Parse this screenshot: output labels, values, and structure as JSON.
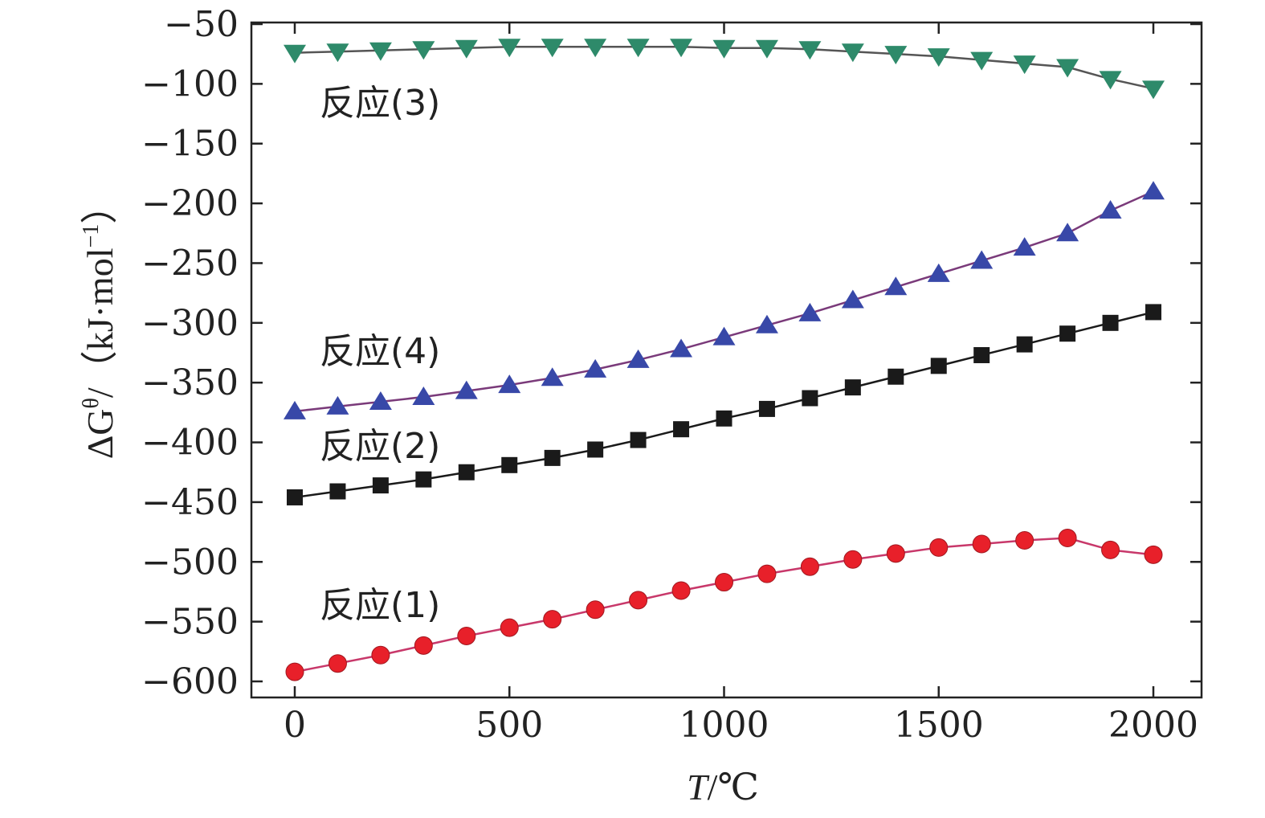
{
  "chart_data": {
    "type": "line",
    "title": "",
    "xlabel_var": "T",
    "xlabel_unit": "/℃",
    "ylabel_prefix": "ΔG",
    "ylabel_sup1": "θ",
    "ylabel_mid": "/（kJ·mol",
    "ylabel_sup2": "−1",
    "ylabel_suffix": "）",
    "xlim": [
      -100,
      2100
    ],
    "ylim": [
      -610,
      -50
    ],
    "xticks": [
      0,
      500,
      1000,
      1500,
      2000
    ],
    "yticks": [
      -50,
      -100,
      -150,
      -200,
      -250,
      -300,
      -350,
      -400,
      -450,
      -500,
      -550,
      -600
    ],
    "xtick_labels": [
      "0",
      "500",
      "1000",
      "1500",
      "2000"
    ],
    "ytick_labels": [
      "−50",
      "−100",
      "−150",
      "−200",
      "−250",
      "−300",
      "−350",
      "−400",
      "−450",
      "−500",
      "−550",
      "−600"
    ],
    "x": [
      0,
      100,
      200,
      300,
      400,
      500,
      600,
      700,
      800,
      900,
      1000,
      1100,
      1200,
      1300,
      1400,
      1500,
      1600,
      1700,
      1800,
      1900,
      2000
    ],
    "series": [
      {
        "name": "反应(1)",
        "marker": "circle",
        "color": "#e8202a",
        "line_color": "#c8386a",
        "values": [
          -592,
          -585,
          -578,
          -570,
          -562,
          -555,
          -548,
          -540,
          -532,
          -524,
          -517,
          -510,
          -504,
          -498,
          -493,
          -488,
          -485,
          -482,
          -480,
          -490,
          -494
        ]
      },
      {
        "name": "反应(2)",
        "marker": "square",
        "color": "#1a1a1a",
        "line_color": "#1a1a1a",
        "values": [
          -446,
          -441,
          -436,
          -431,
          -425,
          -419,
          -413,
          -406,
          -398,
          -389,
          -380,
          -372,
          -363,
          -354,
          -345,
          -336,
          -327,
          -318,
          -309,
          -300,
          -291
        ]
      },
      {
        "name": "反应(3)",
        "marker": "triangle-down",
        "color": "#2e8a6a",
        "line_color": "#555555",
        "values": [
          -74,
          -73,
          -72,
          -71,
          -70,
          -69,
          -69,
          -69,
          -69,
          -69,
          -70,
          -70,
          -71,
          -73,
          -75,
          -77,
          -80,
          -83,
          -86,
          -96,
          -104
        ]
      },
      {
        "name": "反应(4)",
        "marker": "triangle-up",
        "color": "#3848a8",
        "line_color": "#7a3a7a",
        "values": [
          -374,
          -370,
          -366,
          -362,
          -357,
          -352,
          -346,
          -339,
          -331,
          -322,
          -312,
          -302,
          -292,
          -281,
          -270,
          -259,
          -248,
          -237,
          -225,
          -206,
          -190
        ]
      }
    ],
    "annotations": [
      {
        "text": "反应(3)",
        "series": "反应(3)"
      },
      {
        "text": "反应(4)",
        "series": "反应(4)"
      },
      {
        "text": "反应(2)",
        "series": "反应(2)"
      },
      {
        "text": "反应(1)",
        "series": "反应(1)"
      }
    ]
  }
}
